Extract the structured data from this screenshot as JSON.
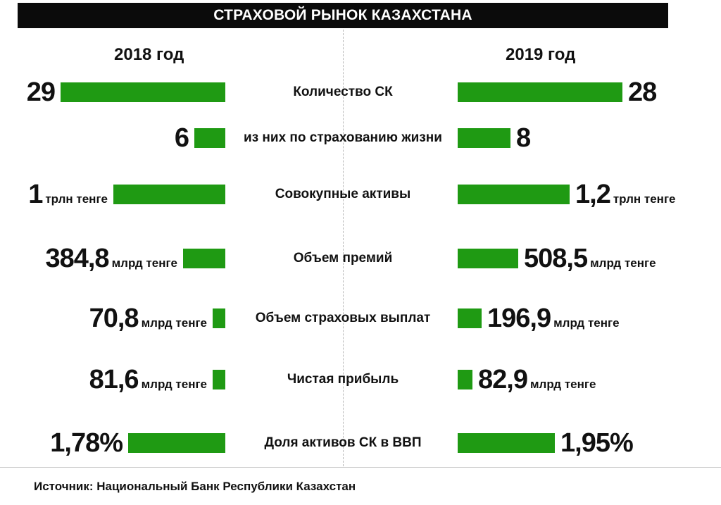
{
  "title": "СТРАХОВОЙ РЫНОК КАЗАХСТАНА",
  "years": {
    "left": "2018 год",
    "right": "2019 год"
  },
  "source": "Источник: Национальный Банк Республики Казахстан",
  "colors": {
    "bar": "#1f9a13",
    "title_bg": "#0b0b0b",
    "title_text": "#ffffff"
  },
  "chart_data": {
    "type": "bar",
    "title": "СТРАХОВОЙ РЫНОК КАЗАХСТАНА",
    "series": [
      {
        "name": "2018 год"
      },
      {
        "name": "2019 год"
      }
    ],
    "rows": [
      {
        "label": "Количество СК",
        "left_value": "29",
        "left_unit": "",
        "right_value": "28",
        "right_unit": "",
        "values": [
          29,
          28
        ],
        "left_fraction": 0.9,
        "right_fraction": 0.9
      },
      {
        "label": "из них по страхованию жизни",
        "left_value": "6",
        "left_unit": "",
        "right_value": "8",
        "right_unit": "",
        "values": [
          6,
          8
        ],
        "left_fraction": 0.17,
        "right_fraction": 0.29
      },
      {
        "label": "Совокупные активы",
        "left_value": "1",
        "left_unit": "трлн тенге",
        "right_value": "1,2",
        "right_unit": "трлн тенге",
        "values": [
          1.0,
          1.2
        ],
        "left_fraction": 0.61,
        "right_fraction": 0.61
      },
      {
        "label": "Объем премий",
        "left_value": "384,8",
        "left_unit": "млрд тенге",
        "right_value": "508,5",
        "right_unit": "млрд тенге",
        "values": [
          384.8,
          508.5
        ],
        "left_fraction": 0.23,
        "right_fraction": 0.33
      },
      {
        "label": "Объем страховых выплат",
        "left_value": "70,8",
        "left_unit": "млрд тенге",
        "right_value": "196,9",
        "right_unit": "млрд тенге",
        "values": [
          70.8,
          196.9
        ],
        "left_fraction": 0.07,
        "right_fraction": 0.13
      },
      {
        "label": "Чистая прибыль",
        "left_value": "81,6",
        "left_unit": "млрд тенге",
        "right_value": "82,9",
        "right_unit": "млрд тенге",
        "values": [
          81.6,
          82.9
        ],
        "left_fraction": 0.07,
        "right_fraction": 0.08
      },
      {
        "label": "Доля активов СК в ВВП",
        "left_value": "1,78%",
        "left_unit": "",
        "right_value": "1,95%",
        "right_unit": "",
        "values": [
          1.78,
          1.95
        ],
        "left_fraction": 0.53,
        "right_fraction": 0.53
      }
    ]
  }
}
